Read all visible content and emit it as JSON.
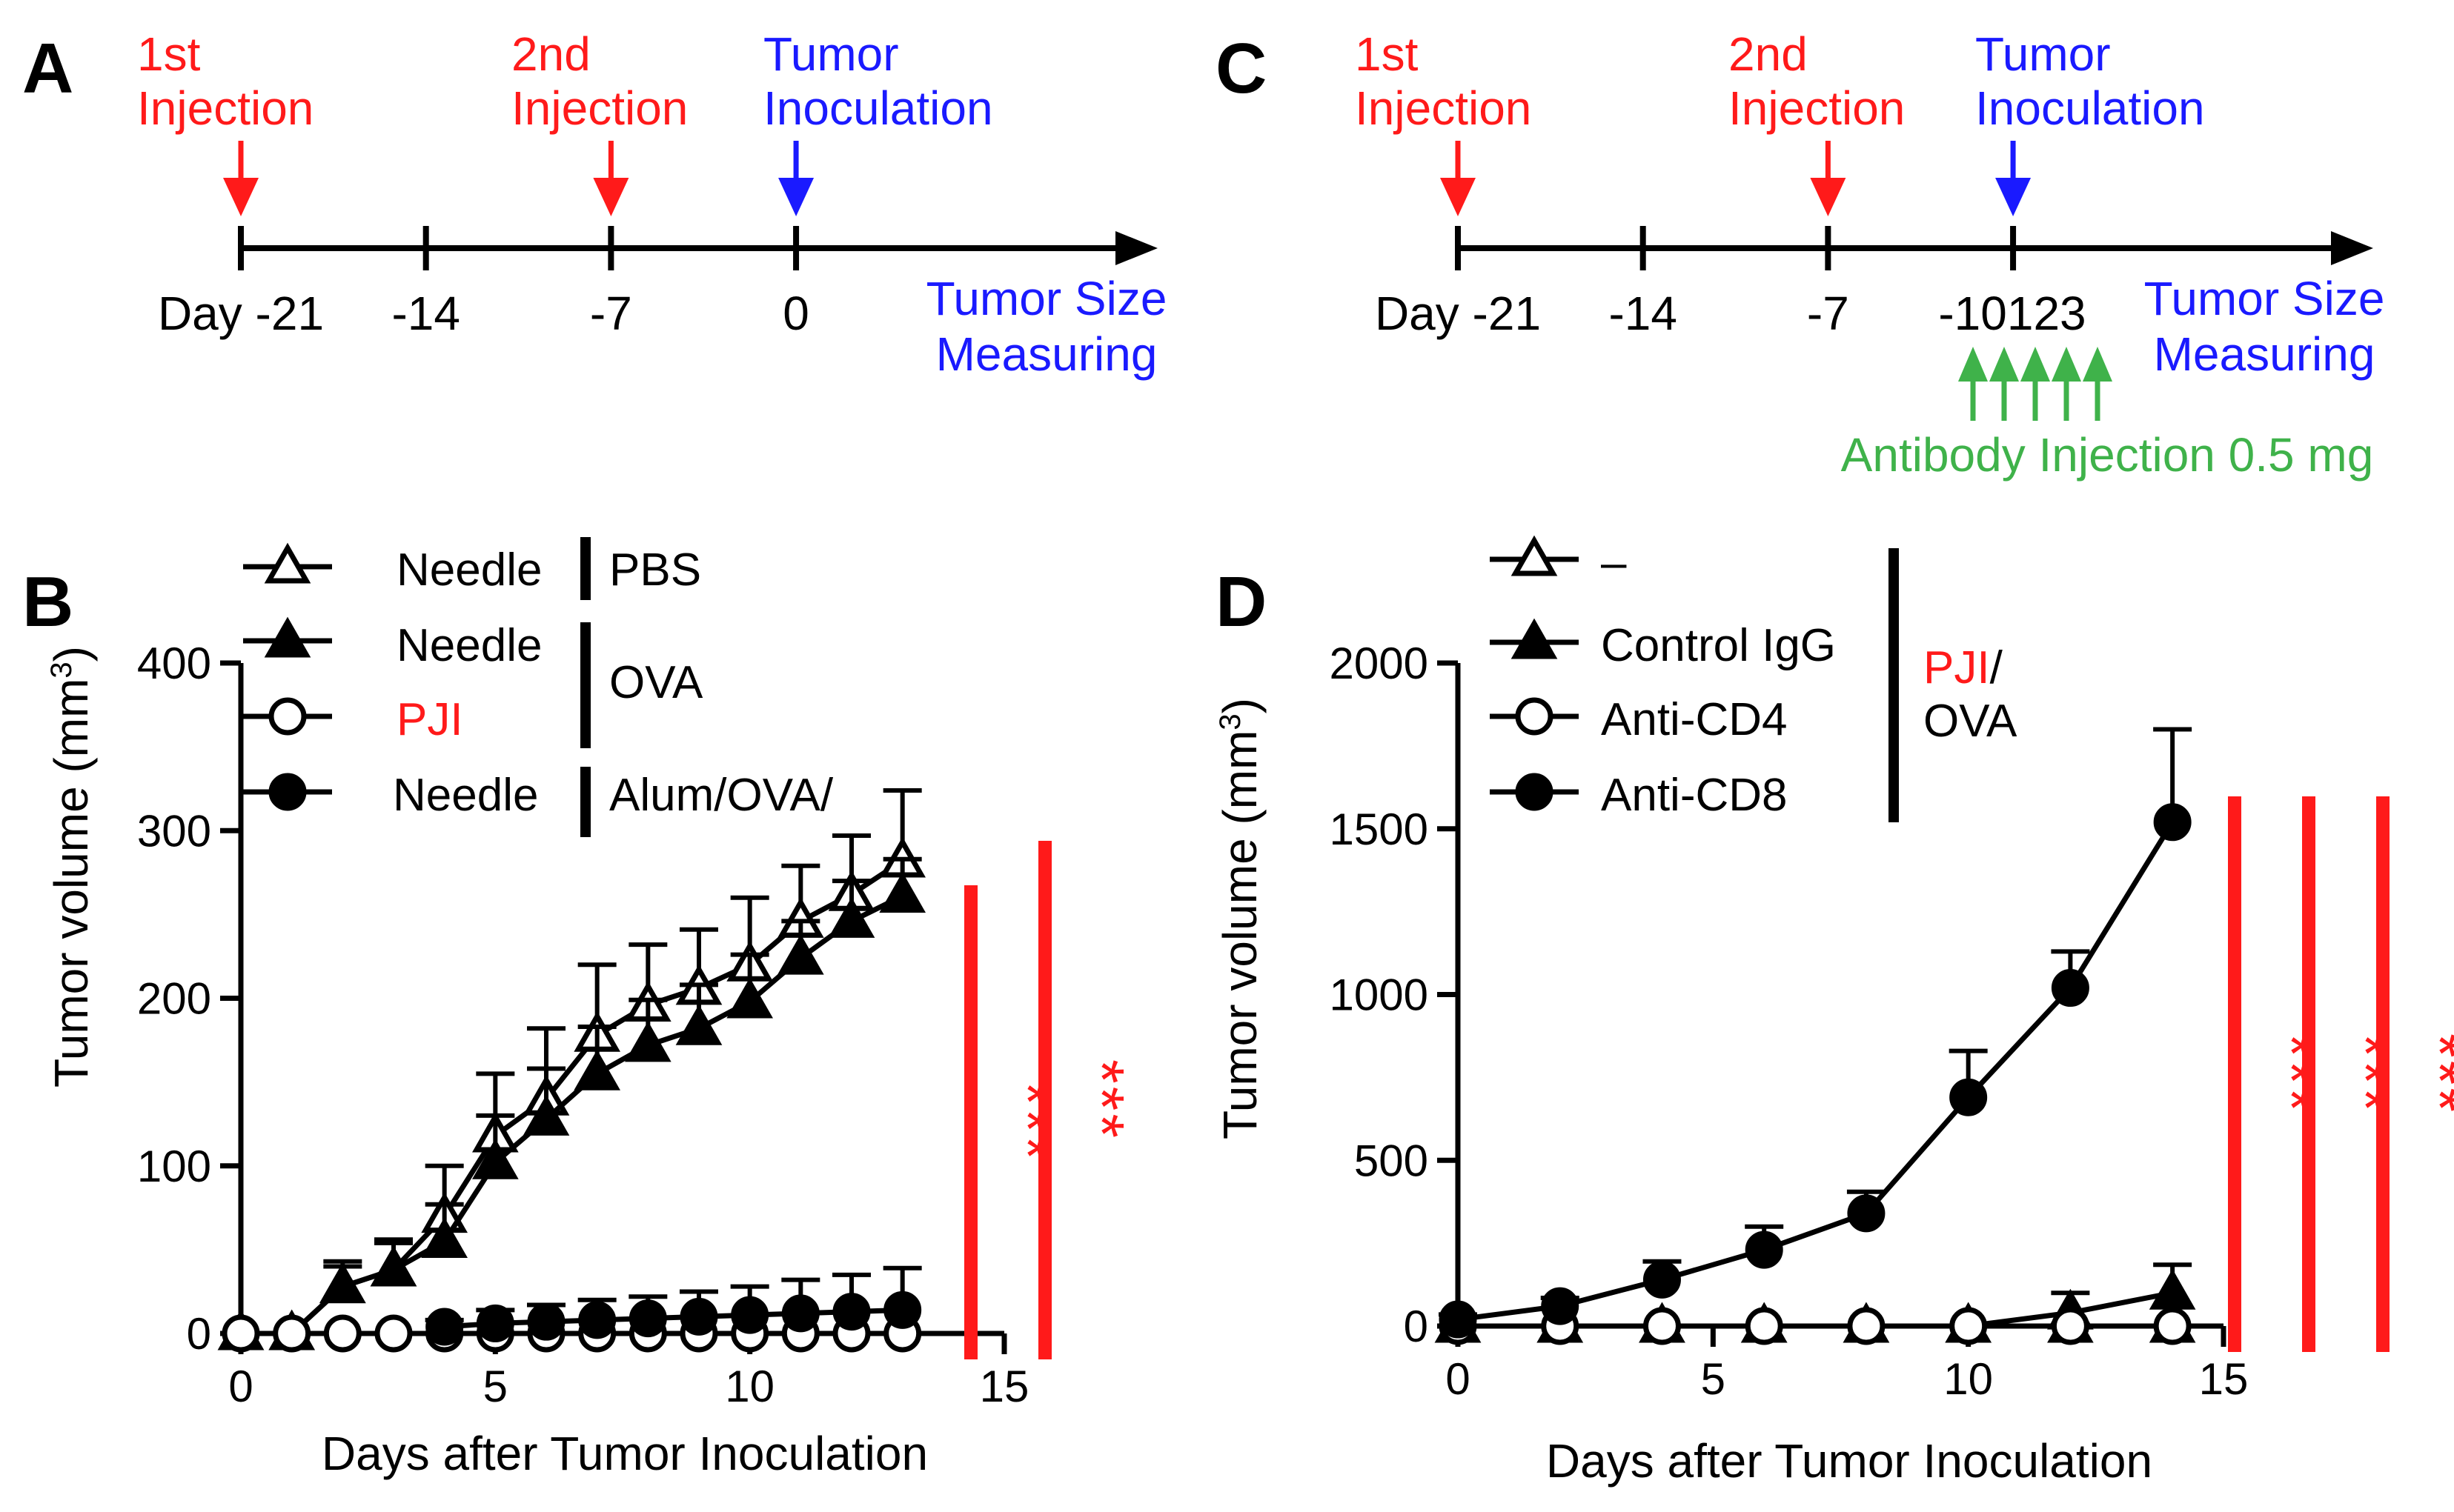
{
  "colors": {
    "red": "#ff1a1a",
    "blue": "#1a1aff",
    "green": "#3fb24a",
    "black": "#000000"
  },
  "panels": {
    "A": {
      "label": "A",
      "events": [
        {
          "line1": "1st",
          "line2": "Injection",
          "day": -21,
          "color": "red"
        },
        {
          "line1": "2nd",
          "line2": "Injection",
          "day": -7,
          "color": "red"
        },
        {
          "line1": "Tumor",
          "line2": "Inoculation",
          "day": 0,
          "color": "blue"
        }
      ],
      "ticks": [
        {
          "day": -21,
          "label": "Day -21"
        },
        {
          "day": -14,
          "label": "-14"
        },
        {
          "day": -7,
          "label": "-7"
        },
        {
          "day": 0,
          "label": "0"
        }
      ],
      "measuring": {
        "line1": "Tumor Size",
        "line2": "Measuring"
      }
    },
    "C": {
      "label": "C",
      "events": [
        {
          "line1": "1st",
          "line2": "Injection",
          "day": -21,
          "color": "red"
        },
        {
          "line1": "2nd",
          "line2": "Injection",
          "day": -7,
          "color": "red"
        },
        {
          "line1": "Tumor",
          "line2": "Inoculation",
          "day": 0,
          "color": "blue"
        }
      ],
      "ticks": [
        {
          "day": -21,
          "label": "Day -21"
        },
        {
          "day": -14,
          "label": "-14"
        },
        {
          "day": -7,
          "label": "-7"
        }
      ],
      "small_ticks": {
        "label": "-10123",
        "days": [
          -1,
          0,
          1,
          2,
          3
        ]
      },
      "measuring": {
        "line1": "Tumor Size",
        "line2": "Measuring"
      },
      "antibody_label": "Antibody Injection 0.5 mg"
    }
  },
  "chart_data": [
    {
      "panel": "B",
      "label": "B",
      "type": "line",
      "xlabel": "Days after Tumor Inoculation",
      "ylabel": "Tumor volume (mm",
      "ylabel_sup": "3",
      "ylabel_close": ")",
      "xlim": [
        0,
        15
      ],
      "ylim": [
        0,
        400
      ],
      "xticks": [
        0,
        5,
        10,
        15
      ],
      "yticks": [
        0,
        100,
        200,
        300,
        400
      ],
      "series": [
        {
          "name": "Needle",
          "marker": "triangle",
          "filled": false,
          "x": [
            0,
            1,
            2,
            3,
            4,
            5,
            6,
            7,
            8,
            9,
            10,
            11,
            12,
            13
          ],
          "y": [
            0,
            0,
            28,
            38,
            70,
            118,
            140,
            178,
            196,
            206,
            220,
            246,
            262,
            282
          ],
          "err": [
            0,
            0,
            15,
            18,
            30,
            37,
            42,
            42,
            36,
            35,
            40,
            33,
            35,
            42
          ]
        },
        {
          "name": "Needle",
          "marker": "triangle",
          "filled": true,
          "x": [
            0,
            1,
            2,
            3,
            4,
            5,
            6,
            7,
            8,
            9,
            10,
            11,
            12,
            13
          ],
          "y": [
            0,
            0,
            28,
            38,
            55,
            102,
            128,
            155,
            172,
            182,
            198,
            224,
            246,
            261
          ],
          "err": [
            0,
            0,
            12,
            16,
            22,
            28,
            30,
            28,
            27,
            26,
            28,
            22,
            24,
            22
          ]
        },
        {
          "name": "PJI",
          "marker": "circle",
          "filled": false,
          "x": [
            0,
            1,
            2,
            3,
            4,
            5,
            6,
            7,
            8,
            9,
            10,
            11,
            12,
            13
          ],
          "y": [
            0,
            0,
            0,
            0,
            0,
            0,
            0,
            0,
            0,
            0,
            0,
            0,
            0,
            0
          ],
          "err": [
            0,
            0,
            0,
            0,
            0,
            0,
            0,
            0,
            0,
            0,
            0,
            0,
            0,
            0
          ]
        },
        {
          "name": "Needle",
          "marker": "circle",
          "filled": true,
          "x": [
            4,
            5,
            6,
            7,
            8,
            9,
            10,
            11,
            12,
            13
          ],
          "y": [
            4,
            6,
            7,
            8,
            9,
            10,
            11,
            12,
            13,
            14
          ],
          "err": [
            4,
            8,
            10,
            12,
            13,
            15,
            17,
            20,
            22,
            25
          ]
        }
      ],
      "legend": {
        "entries": [
          {
            "text": "Needle",
            "color": "black"
          },
          {
            "text": "Needle",
            "color": "black"
          },
          {
            "text": "PJI",
            "color": "red"
          },
          {
            "text": "Needle",
            "color": "black"
          }
        ],
        "groups": [
          {
            "text": "PBS"
          },
          {
            "text": "OVA"
          },
          {
            "text": "Alum/OVA/"
          }
        ]
      },
      "significance": [
        {
          "label": "***"
        },
        {
          "label": "***"
        }
      ]
    },
    {
      "panel": "D",
      "label": "D",
      "type": "line",
      "xlabel": "Days after Tumor Inoculation",
      "ylabel": "Tumor volume (mm",
      "ylabel_sup": "3",
      "ylabel_close": ")",
      "xlim": [
        0,
        15
      ],
      "ylim": [
        0,
        2000
      ],
      "xticks": [
        0,
        5,
        10,
        15
      ],
      "yticks": [
        0,
        500,
        1000,
        1500,
        2000
      ],
      "series": [
        {
          "name": "–",
          "marker": "triangle",
          "filled": false,
          "x": [
            0,
            2,
            4,
            6,
            8,
            10,
            12,
            14
          ],
          "y": [
            0,
            0,
            0,
            0,
            0,
            0,
            0,
            0
          ],
          "err": [
            0,
            0,
            0,
            0,
            0,
            0,
            0,
            0
          ]
        },
        {
          "name": "Control IgG",
          "marker": "triangle",
          "filled": true,
          "x": [
            0,
            2,
            4,
            6,
            8,
            10,
            12,
            14
          ],
          "y": [
            0,
            0,
            0,
            0,
            0,
            0,
            40,
            100
          ],
          "err": [
            0,
            0,
            0,
            0,
            0,
            0,
            60,
            85
          ]
        },
        {
          "name": "Anti-CD4",
          "marker": "circle",
          "filled": false,
          "x": [
            0,
            2,
            4,
            6,
            8,
            10,
            12,
            14
          ],
          "y": [
            0,
            0,
            0,
            0,
            0,
            0,
            0,
            0
          ],
          "err": [
            0,
            0,
            0,
            0,
            0,
            0,
            0,
            0
          ]
        },
        {
          "name": "Anti-CD8",
          "marker": "circle",
          "filled": true,
          "x": [
            0,
            2,
            4,
            6,
            8,
            10,
            12,
            14
          ],
          "y": [
            20,
            60,
            140,
            230,
            340,
            690,
            1020,
            1520
          ],
          "err": [
            15,
            25,
            55,
            70,
            65,
            140,
            110,
            280
          ]
        }
      ],
      "legend": {
        "entries": [
          {
            "text": "–",
            "color": "black"
          },
          {
            "text": "Control IgG",
            "color": "black"
          },
          {
            "text": "Anti-CD4",
            "color": "black"
          },
          {
            "text": "Anti-CD8",
            "color": "black"
          }
        ],
        "group_red": "PJI",
        "group_black_suffix": "/",
        "group_line2": "OVA"
      },
      "significance": [
        {
          "label": "***"
        },
        {
          "label": "***"
        },
        {
          "label": "***"
        }
      ]
    }
  ]
}
